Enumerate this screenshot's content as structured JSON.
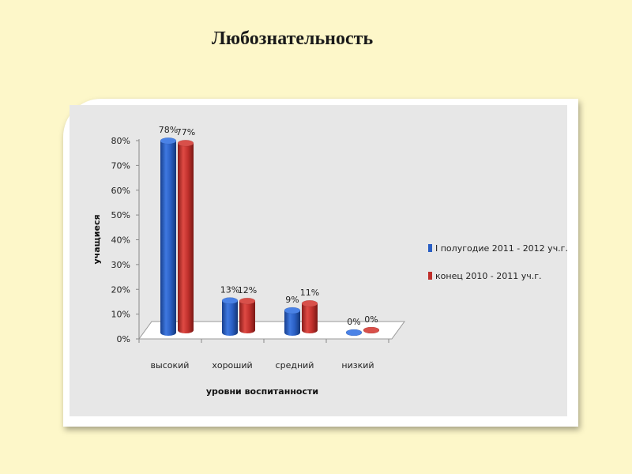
{
  "slide": {
    "title": "Любознательность"
  },
  "chart_data": {
    "type": "bar",
    "title": "",
    "categories": [
      "высокий",
      "хороший",
      "средний",
      "низкий"
    ],
    "series": [
      {
        "name": "I полугодие 2011 - 2012 уч.г.",
        "color": "#2a5fc4",
        "values": [
          78,
          13,
          9,
          0
        ],
        "labels": [
          "78%",
          "13%",
          "9%",
          "0%"
        ]
      },
      {
        "name": "конец 2010 - 2011 уч.г.",
        "color": "#c0302c",
        "values": [
          77,
          12,
          11,
          0
        ],
        "labels": [
          "77%",
          "12%",
          "11%",
          "0%"
        ]
      }
    ],
    "xlabel": "уровни воспитанности",
    "ylabel": "учащиеся",
    "ylim": [
      0,
      80
    ],
    "yticks": [
      "0%",
      "10%",
      "20%",
      "30%",
      "40%",
      "50%",
      "60%",
      "70%",
      "80%"
    ],
    "legend": "right",
    "grid": false
  }
}
